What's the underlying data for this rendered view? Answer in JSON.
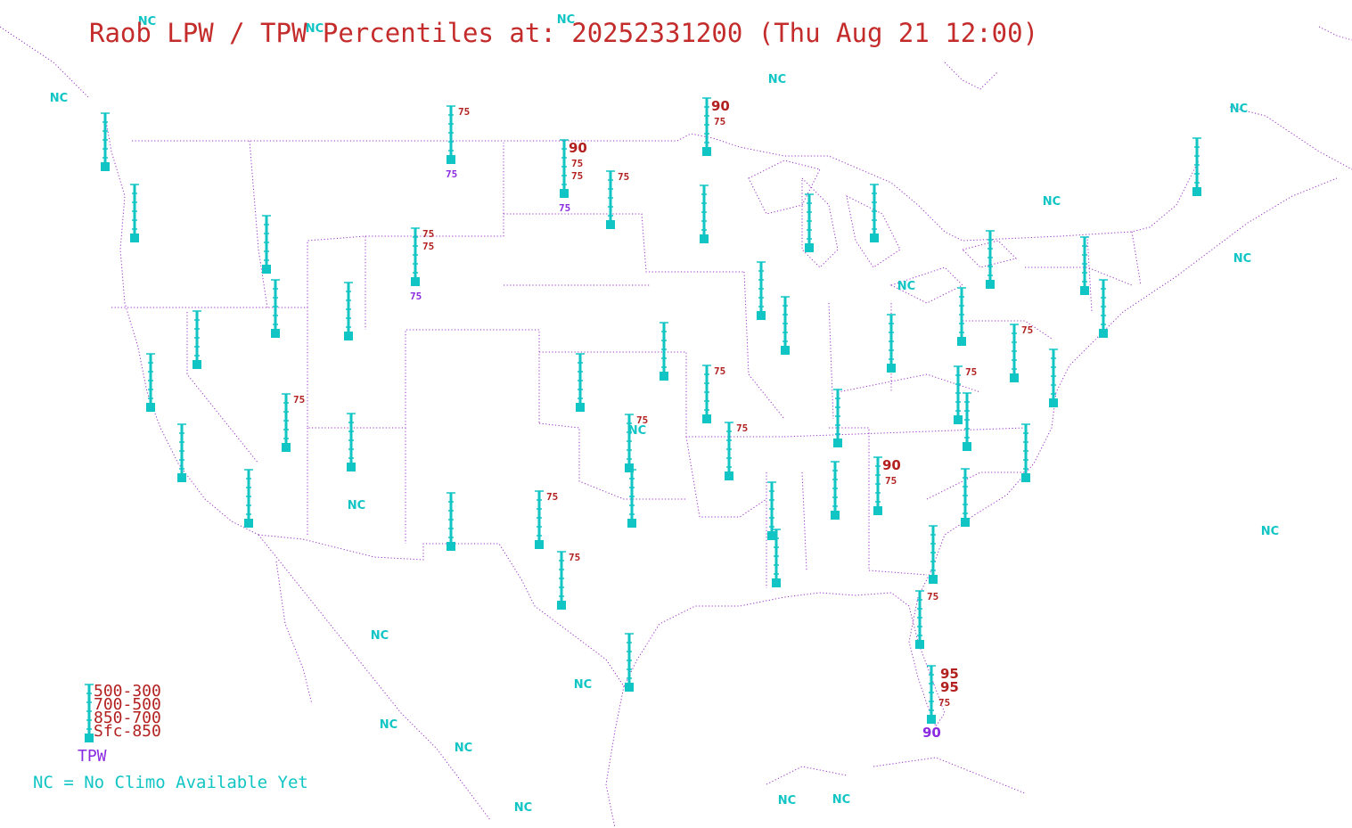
{
  "title": "Raob LPW / TPW Percentiles at: 20252331200 (Thu Aug 21 12:00)",
  "colors": {
    "title": "#c42c2c",
    "gauge": "#12c5c5",
    "percentile": "#b32020",
    "tpw": "#8a2be2",
    "borders": "#9b30c8"
  },
  "legend": {
    "layers": [
      "500-300",
      "700-500",
      "850-700",
      "Sfc-850"
    ],
    "tpw_label": "TPW",
    "nc_note": "NC = No Climo Available Yet"
  },
  "nc_label": "NC",
  "stations": [
    {
      "id": "s1",
      "labels": []
    },
    {
      "id": "s2",
      "labels": []
    },
    {
      "id": "s3",
      "labels": [
        "75"
      ],
      "tpw": "75"
    },
    {
      "id": "s4",
      "labels": [
        "75",
        "75"
      ],
      "tpw": "75",
      "big": "90"
    },
    {
      "id": "s5",
      "labels": [
        "75"
      ]
    },
    {
      "id": "s6",
      "labels": [
        "75"
      ],
      "big": "90"
    },
    {
      "id": "s7",
      "labels": []
    },
    {
      "id": "s8",
      "labels": []
    },
    {
      "id": "s9",
      "labels": []
    },
    {
      "id": "s10",
      "labels": []
    },
    {
      "id": "s11",
      "labels": []
    },
    {
      "id": "s12",
      "labels": []
    },
    {
      "id": "s13",
      "labels": [
        "75",
        "75"
      ],
      "tpw": "75"
    },
    {
      "id": "s14",
      "labels": []
    },
    {
      "id": "s15",
      "labels": []
    },
    {
      "id": "s16",
      "labels": []
    },
    {
      "id": "s17",
      "labels": []
    },
    {
      "id": "s18",
      "labels": []
    },
    {
      "id": "s19",
      "labels": []
    },
    {
      "id": "s20",
      "labels": []
    },
    {
      "id": "s21",
      "labels": []
    },
    {
      "id": "s22",
      "labels": []
    },
    {
      "id": "s23",
      "labels": []
    },
    {
      "id": "s24",
      "labels": []
    },
    {
      "id": "s25",
      "labels": [
        "75"
      ]
    },
    {
      "id": "s26",
      "labels": []
    },
    {
      "id": "s27",
      "labels": [
        "75"
      ]
    },
    {
      "id": "s28",
      "labels": []
    },
    {
      "id": "s29",
      "labels": [
        "75"
      ]
    },
    {
      "id": "s30",
      "labels": []
    },
    {
      "id": "s31",
      "labels": []
    },
    {
      "id": "s32",
      "labels": []
    },
    {
      "id": "s33",
      "labels": []
    },
    {
      "id": "s34",
      "labels": [
        "75"
      ]
    },
    {
      "id": "s35",
      "labels": [
        "75"
      ]
    },
    {
      "id": "s36",
      "labels": [
        "75"
      ]
    },
    {
      "id": "s37",
      "labels": []
    },
    {
      "id": "s38",
      "labels": [
        "75"
      ]
    },
    {
      "id": "s39",
      "labels": []
    },
    {
      "id": "s40",
      "labels": [
        "75"
      ],
      "big": "90"
    },
    {
      "id": "s41",
      "labels": []
    },
    {
      "id": "s42",
      "labels": []
    },
    {
      "id": "s43",
      "labels": []
    },
    {
      "id": "s44",
      "labels": []
    },
    {
      "id": "s45",
      "labels": []
    },
    {
      "id": "s46",
      "labels": []
    },
    {
      "id": "s47",
      "labels": [
        "75"
      ]
    },
    {
      "id": "s48",
      "labels": [
        "75"
      ],
      "big2": [
        "95",
        "95"
      ],
      "tpw_big": "90"
    },
    {
      "id": "s49",
      "labels": [
        "75"
      ]
    },
    {
      "id": "s50",
      "labels": []
    },
    {
      "id": "s51",
      "labels": []
    },
    {
      "id": "s52",
      "labels": []
    },
    {
      "id": "s53",
      "labels": []
    },
    {
      "id": "s54",
      "labels": []
    }
  ]
}
